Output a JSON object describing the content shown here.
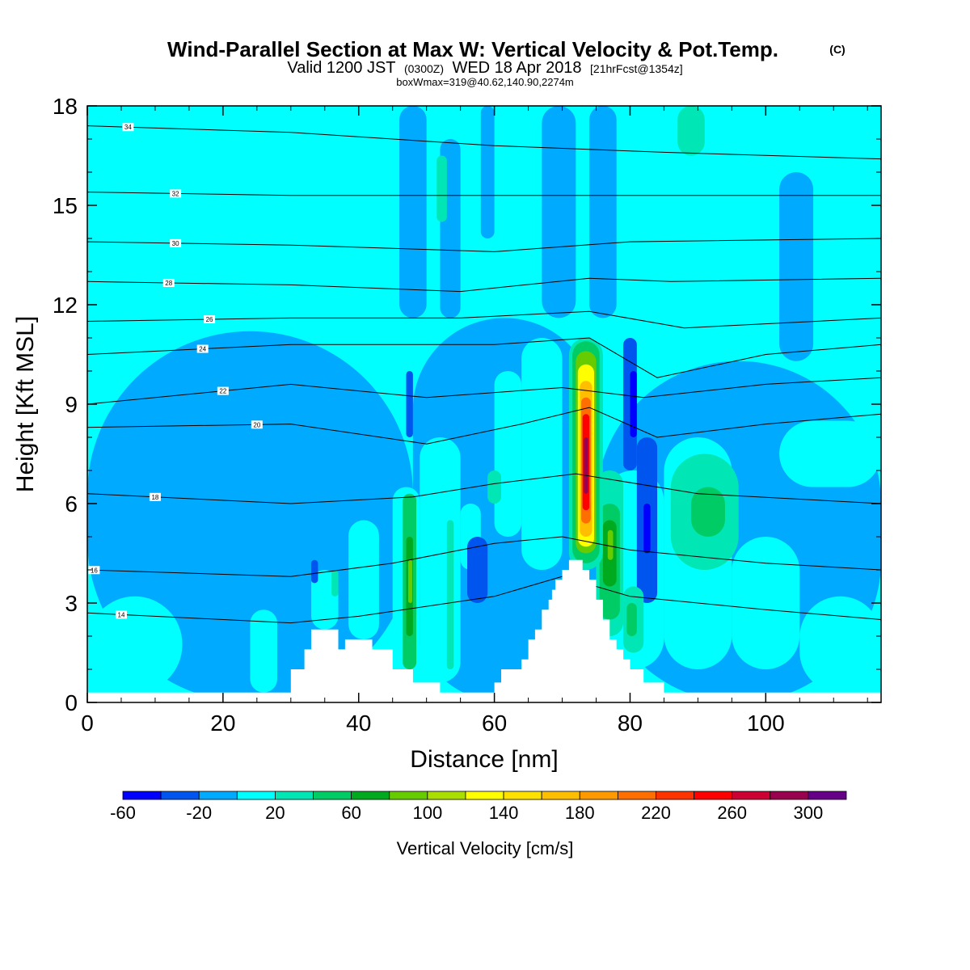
{
  "header": {
    "title": "Wind-Parallel Section at Max W: Vertical Velocity & Pot.Temp.",
    "title_mark": "(C)",
    "valid_prefix": "Valid 1200 JST",
    "valid_utc": "(0300Z)",
    "valid_date": "WED 18 Apr 2018",
    "forecast": "[21hrFcst@1354z]",
    "boxwmax": "boxWmax=319@40.62,140.90,2274m"
  },
  "colorbar": {
    "label": "Vertical Velocity [cm/s]",
    "tick_labels": [
      "-60",
      "-20",
      "20",
      "60",
      "100",
      "140",
      "180",
      "220",
      "260",
      "300"
    ],
    "tick_values": [
      -60,
      -20,
      20,
      60,
      100,
      140,
      180,
      220,
      260,
      300
    ],
    "bounds": [
      -60,
      -40,
      -20,
      0,
      20,
      40,
      60,
      80,
      100,
      120,
      140,
      160,
      180,
      200,
      220,
      240,
      260,
      280,
      300,
      320
    ],
    "colors": [
      "#0000ff",
      "#0055ee",
      "#00aaff",
      "#00ffff",
      "#00e6b4",
      "#00cc66",
      "#00aa1e",
      "#66cc00",
      "#aadd00",
      "#ffff00",
      "#ffe100",
      "#ffbe00",
      "#ff9900",
      "#ff6e00",
      "#ff3300",
      "#ff0000",
      "#cc0033",
      "#99004d",
      "#660088"
    ]
  },
  "chart_data": {
    "type": "heatmap",
    "xlabel": "Distance [nm]",
    "ylabel": "Height [Kft MSL]",
    "xlim": [
      0,
      117
    ],
    "ylim": [
      0,
      18
    ],
    "xticks": [
      0,
      20,
      40,
      60,
      80,
      100
    ],
    "yticks": [
      0,
      3,
      6,
      9,
      12,
      15,
      18
    ],
    "field": "Vertical Velocity [cm/s]",
    "max_vertical_velocity": 319,
    "terrain_kft": [
      [
        0,
        0.3
      ],
      [
        30,
        0.3
      ],
      [
        30,
        1
      ],
      [
        32,
        1
      ],
      [
        32,
        1.6
      ],
      [
        33,
        1.6
      ],
      [
        33,
        2.2
      ],
      [
        37,
        2.2
      ],
      [
        37,
        1.6
      ],
      [
        38,
        1.6
      ],
      [
        38,
        1.9
      ],
      [
        42,
        1.9
      ],
      [
        42,
        1.6
      ],
      [
        45,
        1.6
      ],
      [
        45,
        1
      ],
      [
        48,
        1
      ],
      [
        48,
        0.6
      ],
      [
        52,
        0.6
      ],
      [
        52,
        0.3
      ],
      [
        60,
        0.3
      ],
      [
        60,
        0.6
      ],
      [
        61,
        0.6
      ],
      [
        61,
        1
      ],
      [
        64,
        1
      ],
      [
        64,
        1.3
      ],
      [
        65,
        1.3
      ],
      [
        65,
        1.9
      ],
      [
        66,
        1.9
      ],
      [
        66,
        2.2
      ],
      [
        67,
        2.2
      ],
      [
        67,
        2.8
      ],
      [
        68,
        2.8
      ],
      [
        68,
        3.1
      ],
      [
        68.5,
        3.1
      ],
      [
        68.5,
        3.4
      ],
      [
        69,
        3.4
      ],
      [
        69,
        3.7
      ],
      [
        70,
        3.7
      ],
      [
        70,
        4.0
      ],
      [
        71,
        4.0
      ],
      [
        71,
        4.3
      ],
      [
        73,
        4.3
      ],
      [
        73,
        4.0
      ],
      [
        74,
        4.0
      ],
      [
        74,
        3.7
      ],
      [
        75,
        3.7
      ],
      [
        75,
        3.1
      ],
      [
        76,
        3.1
      ],
      [
        76,
        2.5
      ],
      [
        77,
        2.5
      ],
      [
        77,
        1.9
      ],
      [
        78,
        1.9
      ],
      [
        78,
        1.6
      ],
      [
        79,
        1.6
      ],
      [
        79,
        1.3
      ],
      [
        80,
        1.3
      ],
      [
        80,
        1.0
      ],
      [
        82,
        1.0
      ],
      [
        82,
        0.6
      ],
      [
        85,
        0.6
      ],
      [
        85,
        0.3
      ],
      [
        117,
        0.3
      ]
    ],
    "cells": [
      {
        "x": [
          0,
          117
        ],
        "y": [
          0,
          18
        ],
        "v": 10
      },
      {
        "x": [
          0,
          48
        ],
        "y": [
          0,
          11.2
        ],
        "v": -10
      },
      {
        "x": [
          48,
          75
        ],
        "y": [
          0,
          11.6
        ],
        "v": -10
      },
      {
        "x": [
          75,
          117
        ],
        "y": [
          0,
          10.3
        ],
        "v": -10
      },
      {
        "x": [
          46,
          50
        ],
        "y": [
          11.6,
          18
        ],
        "v": -10
      },
      {
        "x": [
          52,
          55
        ],
        "y": [
          11.6,
          17
        ],
        "v": -10
      },
      {
        "x": [
          67,
          72
        ],
        "y": [
          11.6,
          18
        ],
        "v": -10
      },
      {
        "x": [
          74,
          78
        ],
        "y": [
          11.6,
          18
        ],
        "v": -10
      },
      {
        "x": [
          102,
          107
        ],
        "y": [
          10.3,
          16
        ],
        "v": -10
      },
      {
        "x": [
          58,
          60
        ],
        "y": [
          14,
          18
        ],
        "v": -10
      },
      {
        "x": [
          87,
          91
        ],
        "y": [
          16.5,
          18
        ],
        "v": 30
      },
      {
        "x": [
          51.5,
          53
        ],
        "y": [
          14.5,
          16.5
        ],
        "v": 30
      },
      {
        "x": [
          0,
          14
        ],
        "y": [
          0.3,
          3.2
        ],
        "v": 10
      },
      {
        "x": [
          24,
          28
        ],
        "y": [
          0.3,
          2.8
        ],
        "v": 10
      },
      {
        "x": [
          33,
          37
        ],
        "y": [
          2.2,
          4
        ],
        "v": 10
      },
      {
        "x": [
          38.5,
          43
        ],
        "y": [
          1.9,
          5.5
        ],
        "v": 10
      },
      {
        "x": [
          45,
          49
        ],
        "y": [
          1,
          6.5
        ],
        "v": 10
      },
      {
        "x": [
          49,
          55
        ],
        "y": [
          0.6,
          8
        ],
        "v": 10
      },
      {
        "x": [
          55,
          58
        ],
        "y": [
          4,
          6
        ],
        "v": 10
      },
      {
        "x": [
          60,
          64
        ],
        "y": [
          5,
          10
        ],
        "v": 10
      },
      {
        "x": [
          64,
          70
        ],
        "y": [
          4,
          11
        ],
        "v": 10
      },
      {
        "x": [
          76,
          85
        ],
        "y": [
          1,
          7
        ],
        "v": 10
      },
      {
        "x": [
          85,
          95
        ],
        "y": [
          1,
          8
        ],
        "v": 10
      },
      {
        "x": [
          95,
          105
        ],
        "y": [
          1,
          5
        ],
        "v": 10
      },
      {
        "x": [
          105,
          117
        ],
        "y": [
          0.3,
          3.2
        ],
        "v": 10
      },
      {
        "x": [
          102,
          117
        ],
        "y": [
          6.5,
          8.5
        ],
        "v": 10
      },
      {
        "x": [
          86,
          96
        ],
        "y": [
          4,
          7.5
        ],
        "v": 30
      },
      {
        "x": [
          89,
          94
        ],
        "y": [
          5,
          6.5
        ],
        "v": 50
      },
      {
        "x": [
          59,
          61
        ],
        "y": [
          6,
          7
        ],
        "v": 30
      },
      {
        "x": [
          46.5,
          48.5
        ],
        "y": [
          1,
          6.3
        ],
        "v": 50
      },
      {
        "x": [
          47,
          48
        ],
        "y": [
          2,
          5
        ],
        "v": 70
      },
      {
        "x": [
          47.3,
          47.9
        ],
        "y": [
          3,
          4.3
        ],
        "v": 90
      },
      {
        "x": [
          53,
          54
        ],
        "y": [
          1,
          5.5
        ],
        "v": 30
      },
      {
        "x": [
          36,
          37
        ],
        "y": [
          3.2,
          4
        ],
        "v": 30
      },
      {
        "x": [
          33,
          34
        ],
        "y": [
          3.6,
          4.3
        ],
        "v": -30
      },
      {
        "x": [
          56,
          59
        ],
        "y": [
          3,
          5
        ],
        "v": -30
      },
      {
        "x": [
          47,
          48
        ],
        "y": [
          8,
          10
        ],
        "v": -30
      },
      {
        "x": [
          79,
          81
        ],
        "y": [
          7,
          11
        ],
        "v": -30
      },
      {
        "x": [
          81,
          84
        ],
        "y": [
          3,
          8
        ],
        "v": -30
      },
      {
        "x": [
          82,
          83
        ],
        "y": [
          4.5,
          6
        ],
        "v": -50
      },
      {
        "x": [
          80,
          81
        ],
        "y": [
          8,
          10
        ],
        "v": -50
      },
      {
        "x": [
          75,
          79
        ],
        "y": [
          2,
          7
        ],
        "v": 30
      },
      {
        "x": [
          75.5,
          78.5
        ],
        "y": [
          2.5,
          6
        ],
        "v": 50
      },
      {
        "x": [
          76,
          78
        ],
        "y": [
          3.5,
          5.5
        ],
        "v": 70
      },
      {
        "x": [
          76.7,
          77.5
        ],
        "y": [
          4.3,
          5.2
        ],
        "v": 90
      },
      {
        "x": [
          79,
          82
        ],
        "y": [
          1.5,
          3.5
        ],
        "v": 30
      },
      {
        "x": [
          79.5,
          81
        ],
        "y": [
          2,
          3
        ],
        "v": 50
      },
      {
        "x": [
          71,
          76
        ],
        "y": [
          4,
          11
        ],
        "v": 30
      },
      {
        "x": [
          71.5,
          75.5
        ],
        "y": [
          4.2,
          10.9
        ],
        "v": 50
      },
      {
        "x": [
          72,
          75
        ],
        "y": [
          4.5,
          10.6
        ],
        "v": 90
      },
      {
        "x": [
          72.3,
          74.7
        ],
        "y": [
          4.7,
          10.2
        ],
        "v": 130
      },
      {
        "x": [
          72.6,
          74.4
        ],
        "y": [
          5,
          9.7
        ],
        "v": 170
      },
      {
        "x": [
          72.8,
          74.2
        ],
        "y": [
          5.4,
          9.2
        ],
        "v": 210
      },
      {
        "x": [
          73,
          74
        ],
        "y": [
          5.8,
          8.7
        ],
        "v": 250
      },
      {
        "x": [
          73.2,
          73.8
        ],
        "y": [
          6.3,
          8
        ],
        "v": 290
      }
    ],
    "isentropes": [
      {
        "label": "14",
        "label_x": 5,
        "pts": [
          [
            0,
            2.7
          ],
          [
            30,
            2.4
          ],
          [
            40,
            2.6
          ],
          [
            60,
            3.2
          ],
          [
            70,
            3.8
          ],
          [
            80,
            3.2
          ],
          [
            100,
            2.8
          ],
          [
            117,
            2.5
          ]
        ]
      },
      {
        "label": "16",
        "label_x": 1,
        "pts": [
          [
            0,
            4.0
          ],
          [
            30,
            3.8
          ],
          [
            45,
            4.2
          ],
          [
            60,
            4.8
          ],
          [
            70,
            5.0
          ],
          [
            80,
            4.6
          ],
          [
            100,
            4.2
          ],
          [
            117,
            4.0
          ]
        ]
      },
      {
        "label": "18",
        "label_x": 10,
        "pts": [
          [
            0,
            6.3
          ],
          [
            30,
            6.0
          ],
          [
            48,
            6.2
          ],
          [
            60,
            6.6
          ],
          [
            72,
            6.9
          ],
          [
            90,
            6.3
          ],
          [
            117,
            6.0
          ]
        ]
      },
      {
        "label": "20",
        "label_x": 25,
        "pts": [
          [
            0,
            8.3
          ],
          [
            30,
            8.4
          ],
          [
            50,
            7.8
          ],
          [
            64,
            8.4
          ],
          [
            74,
            8.9
          ],
          [
            84,
            8.0
          ],
          [
            100,
            8.4
          ],
          [
            117,
            8.7
          ]
        ]
      },
      {
        "label": "22",
        "label_x": 20,
        "pts": [
          [
            0,
            9.0
          ],
          [
            30,
            9.6
          ],
          [
            50,
            9.2
          ],
          [
            70,
            9.5
          ],
          [
            82,
            9.2
          ],
          [
            100,
            9.6
          ],
          [
            117,
            9.8
          ]
        ]
      },
      {
        "label": "24",
        "label_x": 17,
        "pts": [
          [
            0,
            10.5
          ],
          [
            30,
            10.8
          ],
          [
            60,
            10.8
          ],
          [
            74,
            11.0
          ],
          [
            84,
            9.8
          ],
          [
            100,
            10.5
          ],
          [
            117,
            10.8
          ]
        ]
      },
      {
        "label": "26",
        "label_x": 18,
        "pts": [
          [
            0,
            11.5
          ],
          [
            30,
            11.6
          ],
          [
            55,
            11.6
          ],
          [
            74,
            11.8
          ],
          [
            88,
            11.3
          ],
          [
            117,
            11.6
          ]
        ]
      },
      {
        "label": "28",
        "label_x": 12,
        "pts": [
          [
            0,
            12.7
          ],
          [
            30,
            12.6
          ],
          [
            55,
            12.4
          ],
          [
            74,
            12.8
          ],
          [
            86,
            12.7
          ],
          [
            117,
            12.8
          ]
        ]
      },
      {
        "label": "30",
        "label_x": 13,
        "pts": [
          [
            0,
            13.9
          ],
          [
            30,
            13.8
          ],
          [
            60,
            13.6
          ],
          [
            80,
            13.9
          ],
          [
            117,
            14.0
          ]
        ]
      },
      {
        "label": "32",
        "label_x": 13,
        "pts": [
          [
            0,
            15.4
          ],
          [
            30,
            15.3
          ],
          [
            60,
            15.3
          ],
          [
            85,
            15.3
          ],
          [
            117,
            15.3
          ]
        ]
      },
      {
        "label": "34",
        "label_x": 6,
        "pts": [
          [
            0,
            17.4
          ],
          [
            30,
            17.2
          ],
          [
            60,
            16.8
          ],
          [
            85,
            16.6
          ],
          [
            117,
            16.4
          ]
        ]
      }
    ]
  }
}
